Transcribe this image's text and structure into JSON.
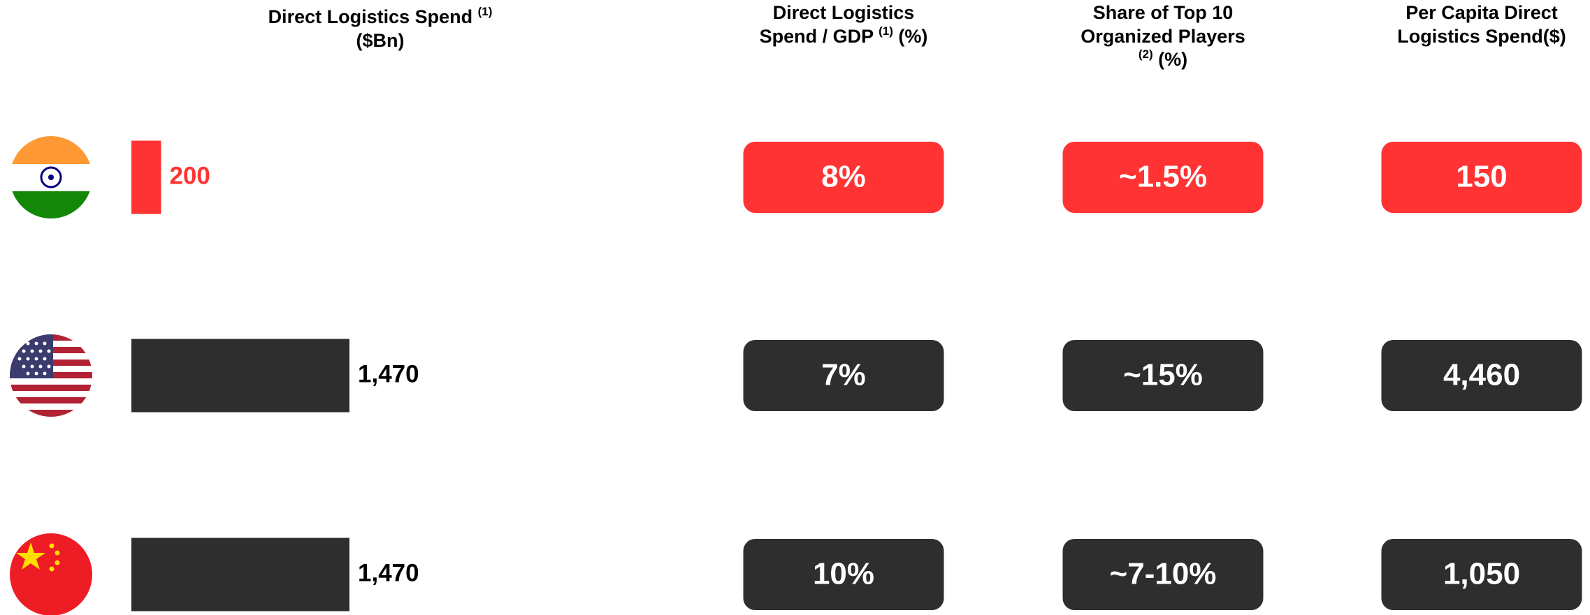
{
  "chart_data": {
    "type": "bar",
    "orientation": "horizontal",
    "title": "Direct Logistics Spend",
    "title_note": "(1)",
    "subtitle": "($Bn)",
    "values": [
      200,
      1470,
      1470
    ],
    "value_labels": [
      "200",
      "1,470",
      "1,470"
    ],
    "colors": [
      "#ff3333",
      "#2e2e2e",
      "#2e2e2e"
    ],
    "label_colors": [
      "#ff3333",
      "#000000",
      "#000000"
    ]
  },
  "metrics": [
    {
      "title_lines": [
        "Direct Logistics",
        "Spend / GDP"
      ],
      "title_note": "(1)",
      "unit": "(%)",
      "values": [
        "8%",
        "7%",
        "10%"
      ]
    },
    {
      "title_lines": [
        "Share of Top 10",
        "Organized Players"
      ],
      "title_note": "(2)",
      "unit": "(%)",
      "values": [
        "~1.5%",
        "~15%",
        "~7-10%"
      ]
    },
    {
      "title_lines": [
        "Per Capita Direct",
        "Logistics Spend($)"
      ],
      "values": [
        "150",
        "4,460",
        "1,050"
      ]
    }
  ]
}
